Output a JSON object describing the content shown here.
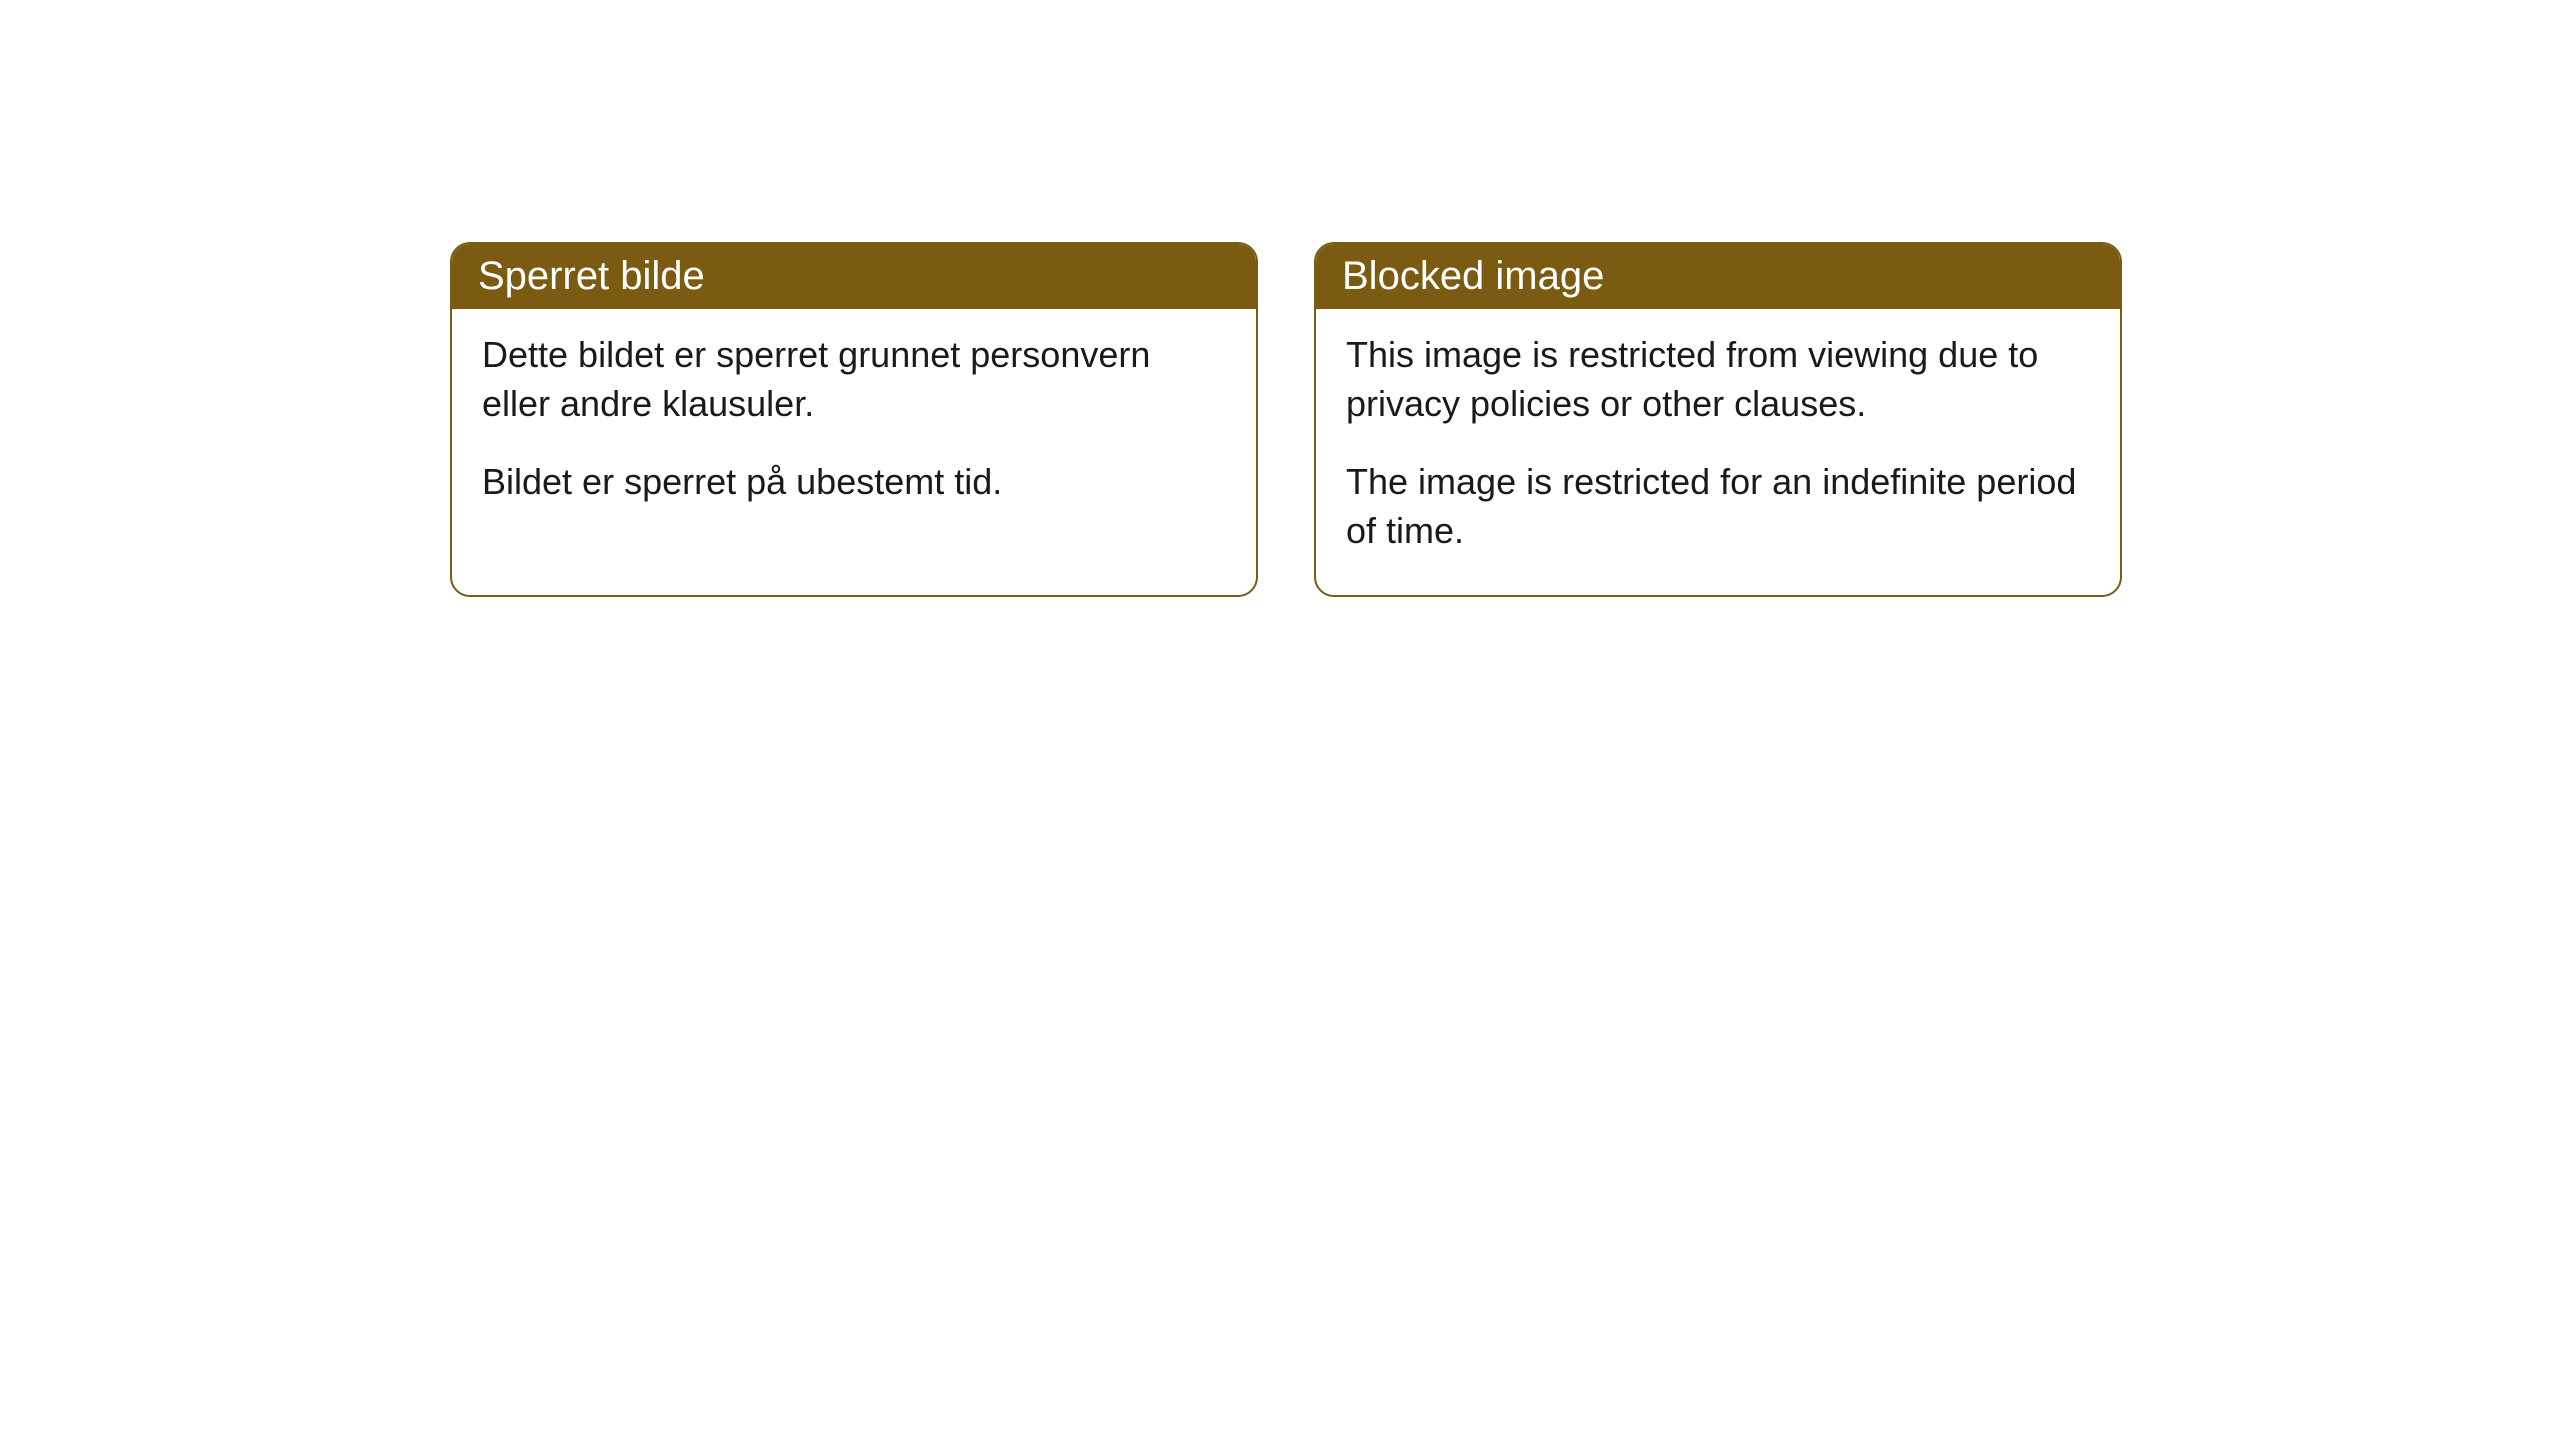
{
  "cards": [
    {
      "title": "Sperret bilde",
      "paragraph1": "Dette bildet er sperret grunnet personvern eller andre klausuler.",
      "paragraph2": "Bildet er sperret på ubestemt tid."
    },
    {
      "title": "Blocked image",
      "paragraph1": "This image is restricted from viewing due to privacy policies or other clauses.",
      "paragraph2": "The image is restricted for an indefinite period of time."
    }
  ],
  "colors": {
    "header_background": "#7a5b11",
    "header_text": "#ffffff",
    "border": "#7a5b11",
    "body_text": "#1a1a1a",
    "background": "#ffffff"
  }
}
